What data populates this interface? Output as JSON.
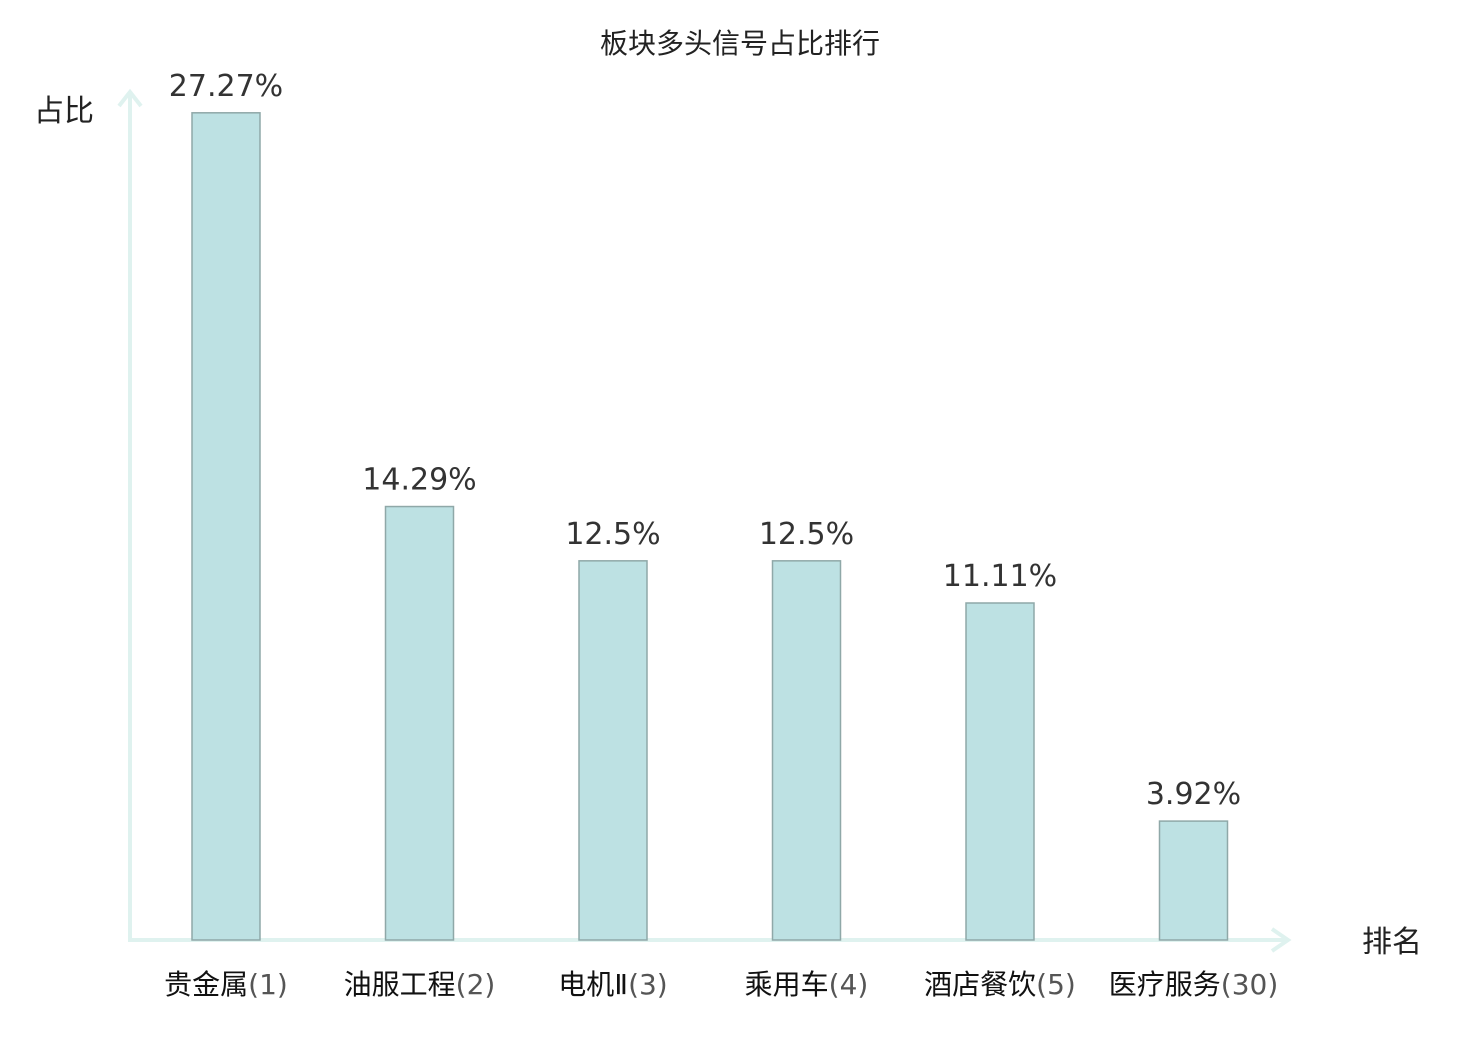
{
  "chart_data": {
    "type": "bar",
    "title": "板块多头信号占比排行",
    "ylabel": "占比",
    "xlabel": "排名",
    "categories": [
      {
        "name": "贵金属",
        "rank": "(1)"
      },
      {
        "name": "油服工程",
        "rank": "(2)"
      },
      {
        "name": "电机Ⅱ",
        "rank": "(3)"
      },
      {
        "name": "乘用车",
        "rank": "(4)"
      },
      {
        "name": "酒店餐饮",
        "rank": "(5)"
      },
      {
        "name": "医疗服务",
        "rank": "(30)"
      }
    ],
    "values": [
      27.27,
      14.29,
      12.5,
      12.5,
      11.11,
      3.92
    ],
    "value_labels": [
      "27.27%",
      "14.29%",
      "12.5%",
      "12.5%",
      "11.11%",
      "3.92%"
    ],
    "ylim": [
      0,
      30
    ],
    "grid": false,
    "highlight_index": 5,
    "colors": {
      "bar_fill": "#bde1e3",
      "bar_stroke": "#8fa8a8",
      "axis": "#dff2ef",
      "highlight_text": "#e02020"
    }
  }
}
